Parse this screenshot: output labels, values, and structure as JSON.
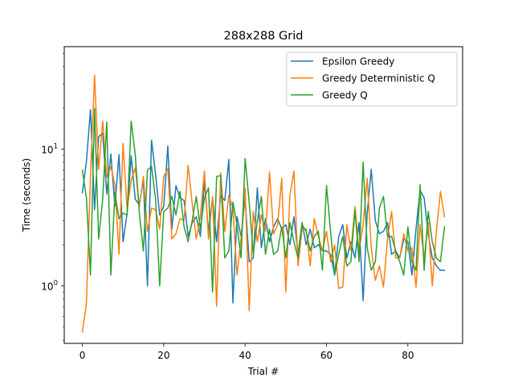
{
  "chart_data": {
    "type": "line",
    "title": "288x288 Grid",
    "xlabel": "Trial #",
    "ylabel": "Time (seconds)",
    "xlim": [
      -4.45,
      93.45
    ],
    "ylim": [
      0.38,
      56
    ],
    "yscale": "log",
    "x_ticks": [
      0,
      20,
      40,
      60,
      80
    ],
    "x_tick_labels": [
      "0",
      "20",
      "40",
      "60",
      "80"
    ],
    "y_ticks": [
      1,
      10
    ],
    "y_tick_labels": [
      "10^0",
      "10^1"
    ],
    "grid": false,
    "legend_position": "top-right",
    "x": [
      0,
      1,
      2,
      3,
      4,
      5,
      6,
      7,
      8,
      9,
      10,
      11,
      12,
      13,
      14,
      15,
      16,
      17,
      18,
      19,
      20,
      21,
      22,
      23,
      24,
      25,
      26,
      27,
      28,
      29,
      30,
      31,
      32,
      33,
      34,
      35,
      36,
      37,
      38,
      39,
      40,
      41,
      42,
      43,
      44,
      45,
      46,
      47,
      48,
      49,
      50,
      51,
      52,
      53,
      54,
      55,
      56,
      57,
      58,
      59,
      60,
      61,
      62,
      63,
      64,
      65,
      66,
      67,
      68,
      69,
      70,
      71,
      72,
      73,
      74,
      75,
      76,
      77,
      78,
      79,
      80,
      81,
      82,
      83,
      84,
      85,
      86,
      87,
      88,
      89
    ],
    "series": [
      {
        "name": "Epsilon Greedy",
        "color": "#1f77b4",
        "values": [
          4.8,
          8.1,
          19.4,
          3.6,
          12.3,
          13.1,
          4.7,
          9.2,
          3.8,
          9.1,
          2.1,
          3.4,
          8.9,
          4.3,
          3.9,
          6,
          1,
          11.6,
          6.5,
          3.3,
          3.8,
          10.5,
          2.6,
          5.4,
          4.4,
          4.2,
          2.3,
          2.9,
          3.2,
          2.3,
          5.8,
          2.5,
          4.4,
          2.1,
          4.6,
          4.2,
          8.4,
          0.75,
          3.2,
          2.3,
          4.4,
          1.5,
          1.6,
          5.2,
          1.9,
          3.1,
          2.1,
          2.7,
          3.1,
          2.6,
          2.8,
          2,
          3.2,
          1.7,
          2.9,
          2,
          2.6,
          1.9,
          2,
          1.8,
          1.8,
          1.7,
          1.2,
          2.3,
          2.8,
          1.6,
          2.1,
          1.6,
          2.9,
          0.78,
          3.4,
          7.1,
          3,
          2.4,
          2.5,
          2.9,
          1.7,
          1.8,
          1.6,
          2.2,
          2.1,
          1.2,
          2.6,
          5,
          4.4,
          2.4,
          1.6,
          1.4,
          1.3,
          1.3
        ]
      },
      {
        "name": "Greedy Deterministic Q",
        "color": "#ff7f0e",
        "values": [
          0.46,
          0.74,
          6.4,
          34.6,
          7.1,
          16,
          6.2,
          7.4,
          5.5,
          1.7,
          11,
          3.6,
          5.9,
          7.3,
          3.8,
          6.3,
          2.5,
          3.7,
          3.6,
          2.6,
          6.3,
          7.2,
          2.2,
          2.4,
          3.1,
          3,
          7.6,
          4,
          2.2,
          3.2,
          6.9,
          2.2,
          4.5,
          0.71,
          6.7,
          2.5,
          4.6,
          3.7,
          1.2,
          2.2,
          5.2,
          0.66,
          3.5,
          2.1,
          3.3,
          2.5,
          6.8,
          2.4,
          2.8,
          6.1,
          0.9,
          4.6,
          6.9,
          1.4,
          2.6,
          2.6,
          1.4,
          3.1,
          2.3,
          1.8,
          2.5,
          1.5,
          2,
          0.96,
          0.98,
          2.8,
          1.8,
          3.8,
          1.8,
          2.8,
          6.1,
          1.9,
          1.1,
          1.4,
          0.98,
          2.2,
          3.5,
          1.6,
          1.6,
          2.4,
          1.8,
          1.9,
          0.98,
          2.8,
          1.6,
          2.9,
          1,
          2.5,
          4.9,
          3.2
        ]
      },
      {
        "name": "Greedy Q",
        "color": "#2ca02c",
        "values": [
          7,
          4.4,
          1.2,
          19.8,
          2.2,
          4.3,
          15.7,
          1.2,
          4.8,
          3.1,
          3.4,
          3.3,
          16,
          9.1,
          3.4,
          1.8,
          7,
          7.5,
          4.3,
          1,
          3.5,
          3.7,
          4.5,
          3.3,
          4.9,
          2.7,
          2.1,
          3,
          4.5,
          2.6,
          4.4,
          5.2,
          0.9,
          6.3,
          6.4,
          1.6,
          1.8,
          4.1,
          2.8,
          1.6,
          8.5,
          4.1,
          1.7,
          3,
          4.5,
          1.7,
          2.6,
          1.7,
          1.8,
          2.7,
          1.6,
          2.9,
          2.1,
          1.6,
          2.8,
          2.5,
          1.8,
          2.3,
          2.5,
          1.3,
          5.4,
          2.5,
          1.2,
          1.7,
          2.3,
          1.4,
          1.5,
          3.6,
          1.5,
          8,
          1.9,
          1.3,
          1.5,
          3.7,
          4.5,
          2.3,
          2.3,
          1.8,
          1.5,
          1.2,
          2.7,
          1.5,
          1.3,
          5.5,
          1.3,
          3.5,
          2.1,
          1.6,
          1.5,
          2.7
        ]
      }
    ]
  }
}
